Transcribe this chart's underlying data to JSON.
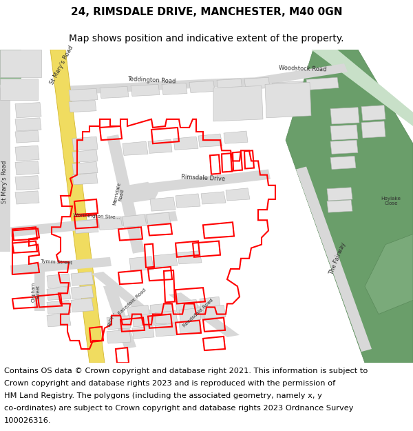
{
  "title_line1": "24, RIMSDALE DRIVE, MANCHESTER, M40 0GN",
  "title_line2": "Map shows position and indicative extent of the property.",
  "footer_text": "Contains OS data © Crown copyright and database right 2021. This information is subject to Crown copyright and database rights 2023 and is reproduced with the permission of HM Land Registry. The polygons (including the associated geometry, namely x, y co-ordinates) are subject to Crown copyright and database rights 2023 Ordnance Survey 100026316.",
  "bg_color": "#ffffff",
  "map_bg": "#f5f5f5",
  "road_color": "#d8d8d8",
  "road_edge": "#c0c0c0",
  "building_fill": "#e0e0e0",
  "building_edge": "#b8b8b8",
  "green_fill": "#7aaa7a",
  "green_fill2": "#6a9e6a",
  "green_edge": "#5a8a5a",
  "yellow_fill": "#f0dc60",
  "yellow_edge": "#d4b830",
  "red_color": "#ff0000",
  "red_lw": 1.5,
  "title_fs": 11,
  "sub_fs": 10,
  "footer_fs": 8.2,
  "label_fs": 6.0,
  "label_small_fs": 5.2,
  "label_color": "#303030"
}
